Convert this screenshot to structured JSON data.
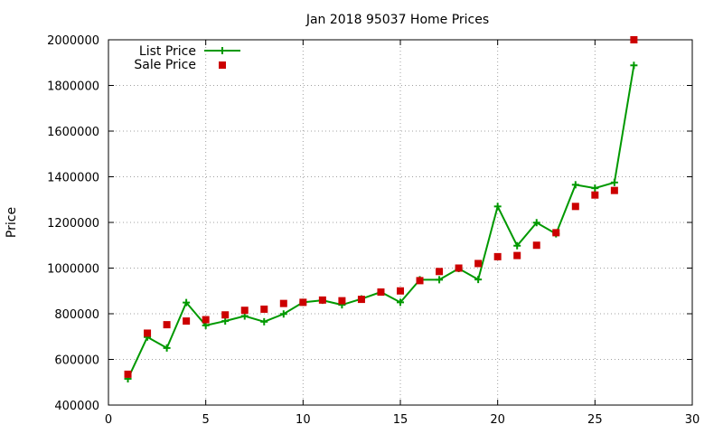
{
  "chart_data": {
    "type": "line",
    "title": "Jan 2018 95037 Home Prices",
    "xlabel": "",
    "ylabel": "Price",
    "xlim": [
      0,
      30
    ],
    "ylim": [
      400000,
      2000000
    ],
    "xticks": [
      0,
      5,
      10,
      15,
      20,
      25,
      30
    ],
    "yticks": [
      400000,
      600000,
      800000,
      1000000,
      1200000,
      1400000,
      1600000,
      1800000,
      2000000
    ],
    "xtick_labels": [
      "0",
      "5",
      "10",
      "15",
      "20",
      "25",
      "30"
    ],
    "ytick_labels": [
      "400000",
      "600000",
      "800000",
      "1000000",
      "1200000",
      "1400000",
      "1600000",
      "1800000",
      "2000000"
    ],
    "grid": true,
    "legend_position": "top-left",
    "x": [
      1,
      2,
      3,
      4,
      5,
      6,
      7,
      8,
      9,
      10,
      11,
      12,
      13,
      14,
      15,
      16,
      17,
      18,
      19,
      20,
      21,
      22,
      23,
      24,
      25,
      26,
      27
    ],
    "series": [
      {
        "name": "List Price",
        "style": "linespoints",
        "color": "#009900",
        "values": [
          515000,
          698000,
          650000,
          849000,
          749000,
          768000,
          790000,
          765000,
          799000,
          850000,
          859000,
          839000,
          865000,
          895000,
          850000,
          949000,
          949000,
          998000,
          950000,
          1270000,
          1098000,
          1199000,
          1150000,
          1365000,
          1350000,
          1375000,
          1888000
        ]
      },
      {
        "name": "Sale Price",
        "style": "points",
        "color": "#cc0000",
        "values": [
          535000,
          715000,
          752000,
          768000,
          774000,
          795000,
          815000,
          820000,
          845000,
          850000,
          860000,
          857000,
          863000,
          895000,
          900000,
          945000,
          985000,
          1000000,
          1020000,
          1050000,
          1055000,
          1100000,
          1155000,
          1270000,
          1320000,
          1340000,
          2000000
        ]
      }
    ]
  }
}
